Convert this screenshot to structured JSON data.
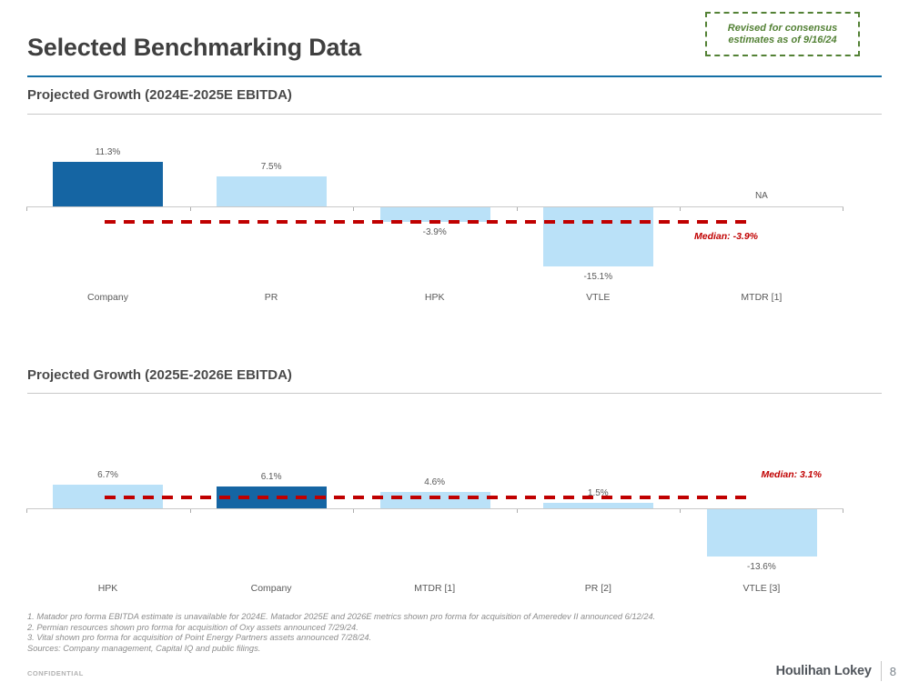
{
  "header": {
    "title": "Selected Benchmarking Data",
    "revision_note": "Revised for consensus estimates as of 9/16/24"
  },
  "colors": {
    "bar_default": "#BAE1F8",
    "bar_highlight": "#1565A3",
    "median_red": "#C00000",
    "accent_blue": "#146FA5",
    "note_green": "#538135"
  },
  "chart_data": [
    {
      "type": "bar",
      "title": "Projected Growth (2024E-2025E EBITDA)",
      "categories": [
        "Company",
        "PR",
        "HPK",
        "VTLE",
        "MTDR [1]"
      ],
      "values": [
        11.3,
        7.5,
        -3.9,
        -15.1,
        null
      ],
      "value_labels": [
        "11.3%",
        "7.5%",
        "-3.9%",
        "-15.1%",
        "NA"
      ],
      "highlight_index": 0,
      "median": -3.9,
      "median_label": "Median: -3.9%",
      "xlabel": "",
      "ylabel": "",
      "grid": false,
      "legend": "none"
    },
    {
      "type": "bar",
      "title": "Projected Growth (2025E-2026E EBITDA)",
      "categories": [
        "HPK",
        "Company",
        "MTDR [1]",
        "PR [2]",
        "VTLE [3]"
      ],
      "values": [
        6.7,
        6.1,
        4.6,
        1.5,
        -13.6
      ],
      "value_labels": [
        "6.7%",
        "6.1%",
        "4.6%",
        "1.5%",
        "-13.6%"
      ],
      "highlight_index": 1,
      "median": 3.1,
      "median_label": "Median: 3.1%",
      "xlabel": "",
      "ylabel": "",
      "grid": false,
      "legend": "none"
    }
  ],
  "footnotes": [
    "1. Matador pro forma EBITDA estimate is unavailable for 2024E. Matador 2025E and 2026E metrics shown pro forma for acquisition of Ameredev II announced 6/12/24.",
    "2. Permian resources shown pro forma for acquisition of Oxy assets announced 7/29/24.",
    "3. Vital shown pro forma for acquisition of Point Energy Partners assets announced 7/28/24.",
    "Sources: Company management, Capital IQ and public filings."
  ],
  "footer": {
    "confidential": "CONFIDENTIAL",
    "brand": "Houlihan Lokey",
    "page_number": "8"
  }
}
